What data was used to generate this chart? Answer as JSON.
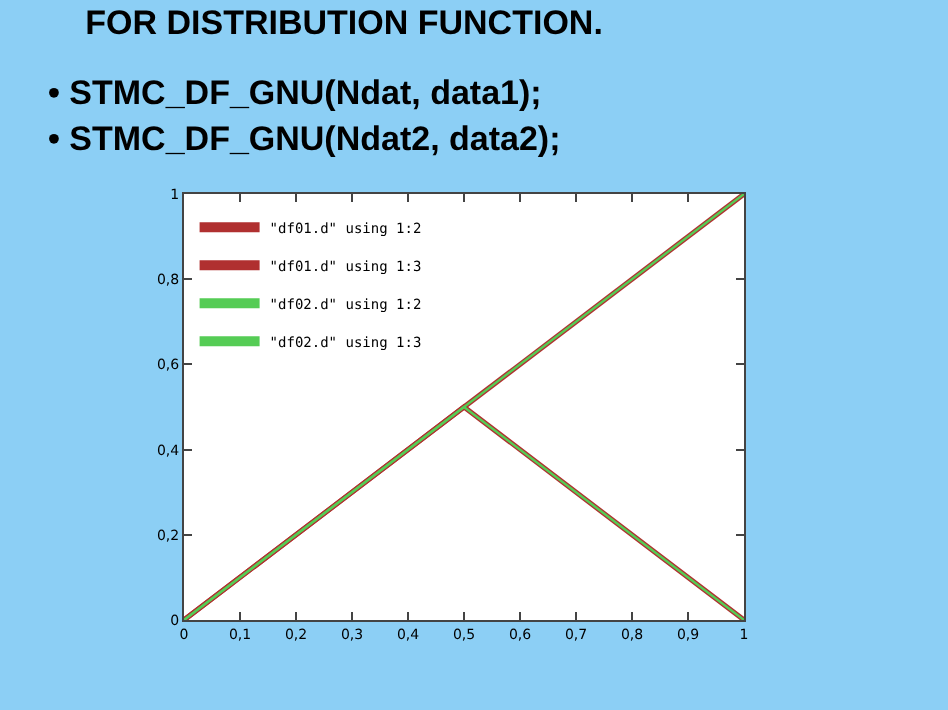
{
  "chart_data": {
    "type": "line",
    "title": "FOR DISTRIBUTION FUNCTION.",
    "annotations": [
      "• STMC_DF_GNU(Ndat, data1);",
      "• STMC_DF_GNU(Ndat2, data2);"
    ],
    "series": [
      {
        "name": "\"df01.d\" using 1:2",
        "color": "#b03030",
        "x": [
          0,
          1
        ],
        "values": [
          0,
          1
        ]
      },
      {
        "name": "\"df01.d\" using 1:3",
        "color": "#b03030",
        "x": [
          0,
          0.5,
          1
        ],
        "values": [
          0,
          0.5,
          0
        ]
      },
      {
        "name": "\"df02.d\" using 1:2",
        "color": "#55cc55",
        "x": [
          0,
          1
        ],
        "values": [
          0,
          1
        ]
      },
      {
        "name": "\"df02.d\" using 1:3",
        "color": "#55cc55",
        "x": [
          0,
          0.5,
          1
        ],
        "values": [
          0,
          0.5,
          0
        ]
      }
    ],
    "xlim": [
      0,
      1
    ],
    "xticks": [
      0,
      {
        "value": 0.1,
        "label": "0,1"
      },
      {
        "value": 0.2,
        "label": "0,2"
      },
      {
        "value": 0.3,
        "label": "0,3"
      },
      {
        "value": 0.4,
        "label": "0,4"
      },
      {
        "value": 0.5,
        "label": "0,5"
      },
      {
        "value": 0.6,
        "label": "0,6"
      },
      {
        "value": 0.7,
        "label": "0,7"
      },
      {
        "value": 0.8,
        "label": "0,8"
      },
      {
        "value": 0.9,
        "label": "0,9"
      },
      1
    ],
    "ylim": [
      0,
      1
    ],
    "yticks": [
      0,
      {
        "value": 0.2,
        "label": "0,2"
      },
      {
        "value": 0.4,
        "label": "0,4"
      },
      {
        "value": 0.6,
        "label": "0,6"
      },
      {
        "value": 0.8,
        "label": "0,8"
      },
      1
    ],
    "grid": false,
    "legend": "top left",
    "marker": "none",
    "line_style": "solid"
  }
}
